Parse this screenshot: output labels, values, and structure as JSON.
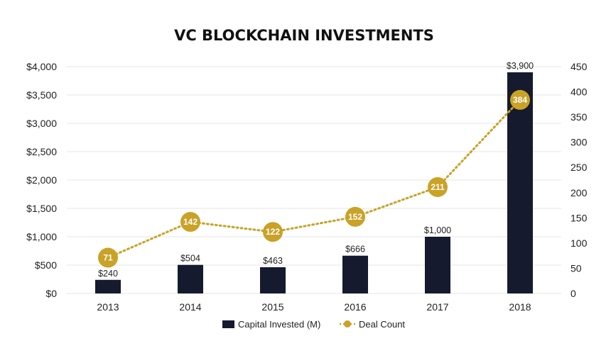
{
  "chart_data": {
    "type": "bar",
    "title": "VC BLOCKCHAIN INVESTMENTS",
    "categories": [
      "2013",
      "2014",
      "2015",
      "2016",
      "2017",
      "2018"
    ],
    "series": [
      {
        "name": "Capital Invested (M)",
        "type": "bar",
        "axis": "left",
        "color": "#151a2e",
        "values": [
          240,
          504,
          463,
          666,
          1000,
          3900
        ],
        "labels": [
          "$240",
          "$504",
          "$463",
          "$666",
          "$1,000",
          "$3,900"
        ]
      },
      {
        "name": "Deal Count",
        "type": "line",
        "axis": "right",
        "color": "#c9a227",
        "line_style": "dotted",
        "values": [
          71,
          142,
          122,
          152,
          211,
          384
        ],
        "labels": [
          "71",
          "142",
          "122",
          "152",
          "211",
          "384"
        ]
      }
    ],
    "y_left": {
      "min": 0,
      "max": 4000,
      "ticks": [
        0,
        500,
        1000,
        1500,
        2000,
        2500,
        3000,
        3500,
        4000
      ],
      "tick_labels": [
        "$0",
        "$500",
        "$1,000",
        "$1,500",
        "$2,000",
        "$2,500",
        "$3,000",
        "$3,500",
        "$4,000"
      ]
    },
    "y_right": {
      "min": 0,
      "max": 450,
      "ticks": [
        0,
        50,
        100,
        150,
        200,
        250,
        300,
        350,
        400,
        450
      ],
      "tick_labels": [
        "0",
        "50",
        "100",
        "150",
        "200",
        "250",
        "300",
        "350",
        "400",
        "450"
      ]
    },
    "grid": true,
    "legend_position": "bottom"
  }
}
